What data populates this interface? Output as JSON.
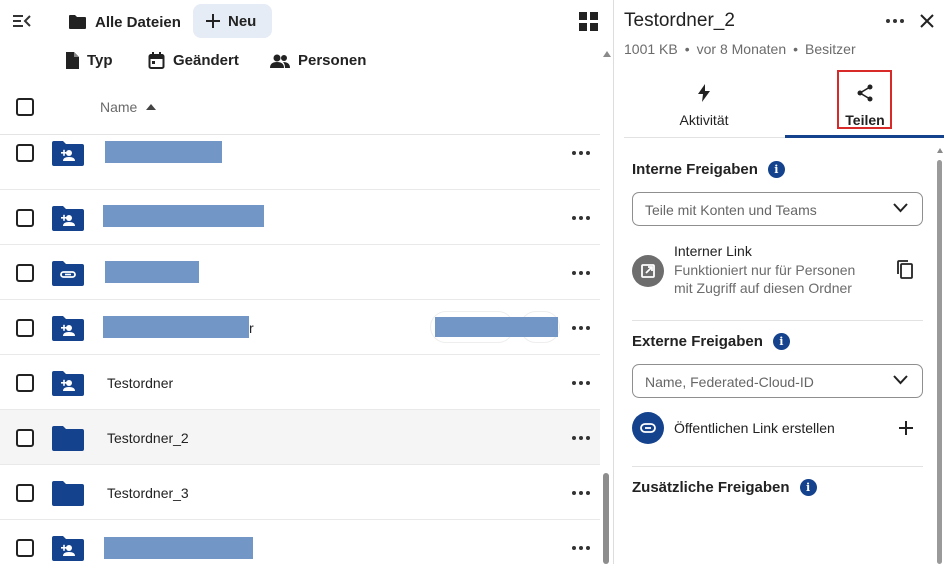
{
  "topbar": {
    "all_files": "Alle Dateien",
    "new_label": "Neu"
  },
  "filters": {
    "type": "Typ",
    "modified": "Geändert",
    "people": "Personen"
  },
  "list": {
    "name_header": "Name",
    "rows": [
      {
        "name": "",
        "icon": "shared-folder-icon"
      },
      {
        "name": "",
        "icon": "shared-folder-icon"
      },
      {
        "name": "",
        "icon": "link-folder-icon"
      },
      {
        "name": "r",
        "icon": "shared-folder-icon"
      },
      {
        "name": "Testordner",
        "icon": "shared-folder-icon"
      },
      {
        "name": "Testordner_2",
        "icon": "folder-icon"
      },
      {
        "name": "Testordner_3",
        "icon": "folder-icon"
      },
      {
        "name": "",
        "icon": "shared-folder-icon"
      }
    ]
  },
  "sidebar": {
    "title": "Testordner_2",
    "size": "1001 KB",
    "sep": "•",
    "modified": "vor 8 Monaten",
    "owner": "Besitzer",
    "tabs": {
      "activity": "Aktivität",
      "share": "Teilen"
    },
    "internal": {
      "title": "Interne Freigaben",
      "placeholder": "Teile mit Konten und Teams",
      "link_title": "Interner Link",
      "link_desc_1": "Funktioniert nur für Personen",
      "link_desc_2": "mit Zugriff auf diesen Ordner"
    },
    "external": {
      "title": "Externe Freigaben",
      "placeholder": "Name, Federated-Cloud-ID",
      "create_link": "Öffentlichen Link erstellen"
    },
    "additional": {
      "title": "Zusätzliche Freigaben"
    }
  },
  "colors": {
    "accent": "#14428d",
    "redaction": "#7296c6",
    "highlight_box": "#d92a2a"
  }
}
